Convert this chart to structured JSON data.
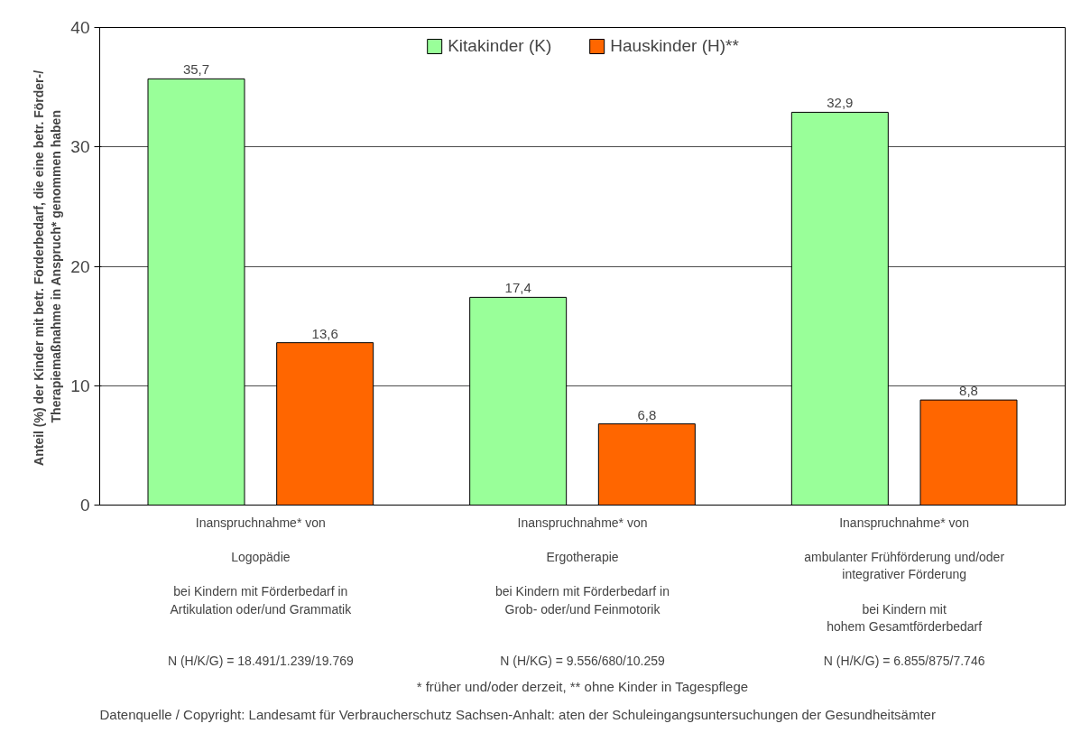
{
  "chart_data": {
    "type": "bar",
    "ylabel": "Anteil (%) der Kinder mit betr. Förderbedarf, die eine  betr. Förder-/\nTherapiemaßnahme in Anspruch* genommen haben",
    "categories": [
      "Inanspruchnahme* von\n\nLogopädie\n\nbei Kindern mit Förderbedarf in\nArtikulation oder/und Grammatik\n\n\nN (H/K/G) = 18.491/1.239/19.769",
      "Inanspruchnahme* von\n\nErgotherapie\n\nbei Kindern mit Förderbedarf in\nGrob- oder/und Feinmotorik\n\n\nN (H/KG) = 9.556/680/10.259",
      "Inanspruchnahme* von\n\nambulanter Frühförderung und/oder\nintegrativer Förderung\n\nbei Kindern mit\nhohem Gesamtförderbedarf\n\nN (H/K/G) = 6.855/875/7.746"
    ],
    "series": [
      {
        "name": "Kitakinder (K)",
        "color": "#99ff99",
        "values": [
          35.7,
          17.4,
          32.9
        ],
        "value_labels": [
          "35,7",
          "17,4",
          "32,9"
        ]
      },
      {
        "name": "Hauskinder (H)**",
        "color": "#ff6600",
        "values": [
          13.6,
          6.8,
          8.8
        ],
        "value_labels": [
          "13,6",
          "6,8",
          "8,8"
        ]
      }
    ],
    "ylim": [
      0,
      40
    ],
    "yticks": [
      0,
      10,
      20,
      30,
      40
    ],
    "grid": "y",
    "legend": "top",
    "annotations": [
      "* früher und/oder derzeit, ** ohne Kinder in Tagespflege",
      "Datenquelle / Copyright: Landesamt für Verbraucherschutz Sachsen-Anhalt: aten der Schuleingangsuntersuchungen der Gesundheitsämter"
    ]
  }
}
